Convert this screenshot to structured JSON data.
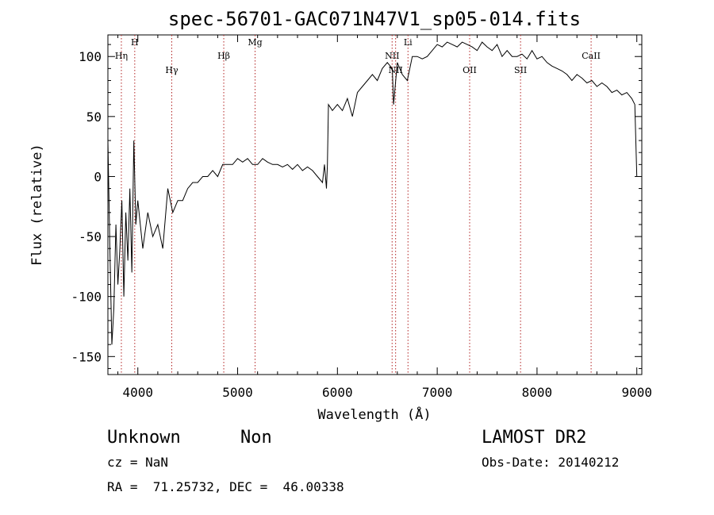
{
  "chart_data": {
    "type": "line",
    "title": "spec-56701-GAC071N47V1_sp05-014.fits",
    "xlabel": "Wavelength (Å)",
    "ylabel": "Flux (relative)",
    "xlim": [
      3700,
      9050
    ],
    "ylim": [
      -165,
      118
    ],
    "xticks": [
      4000,
      5000,
      6000,
      7000,
      8000,
      9000
    ],
    "yticks": [
      -150,
      -100,
      -50,
      0,
      50,
      100
    ],
    "line_color": "#000000",
    "marker_color": "#b22222",
    "grid": false,
    "series": [
      {
        "x": [
          3700,
          3720,
          3740,
          3760,
          3780,
          3800,
          3820,
          3840,
          3860,
          3880,
          3900,
          3920,
          3940,
          3960,
          3980,
          4000,
          4050,
          4100,
          4150,
          4200,
          4250,
          4300,
          4350,
          4400,
          4450,
          4500,
          4550,
          4600,
          4650,
          4700,
          4750,
          4800,
          4850,
          4900,
          4950,
          5000,
          5050,
          5100,
          5150,
          5200,
          5250,
          5300,
          5350,
          5400,
          5450,
          5500,
          5550,
          5600,
          5650,
          5700,
          5750,
          5800,
          5850,
          5870,
          5890,
          5900,
          5910,
          5950,
          6000,
          6050,
          6100,
          6150,
          6200,
          6250,
          6300,
          6350,
          6400,
          6450,
          6500,
          6550,
          6563,
          6600,
          6650,
          6700,
          6750,
          6800,
          6850,
          6900,
          6950,
          7000,
          7050,
          7100,
          7150,
          7200,
          7250,
          7300,
          7350,
          7400,
          7450,
          7500,
          7550,
          7600,
          7650,
          7700,
          7750,
          7800,
          7850,
          7900,
          7950,
          8000,
          8050,
          8100,
          8150,
          8200,
          8250,
          8300,
          8350,
          8400,
          8450,
          8500,
          8550,
          8600,
          8650,
          8700,
          8750,
          8800,
          8850,
          8900,
          8950,
          8980,
          9000
        ],
        "y": [
          30,
          -60,
          -140,
          -110,
          -40,
          -90,
          -60,
          -20,
          -100,
          -30,
          -70,
          -10,
          -80,
          30,
          -40,
          -20,
          -60,
          -30,
          -50,
          -40,
          -60,
          -10,
          -30,
          -20,
          -20,
          -10,
          -5,
          -5,
          0,
          0,
          5,
          0,
          10,
          10,
          10,
          15,
          12,
          15,
          10,
          10,
          15,
          12,
          10,
          10,
          8,
          10,
          6,
          10,
          5,
          8,
          5,
          0,
          -5,
          10,
          -10,
          10,
          60,
          55,
          60,
          55,
          65,
          50,
          70,
          75,
          80,
          85,
          80,
          90,
          95,
          90,
          60,
          95,
          85,
          80,
          100,
          100,
          98,
          100,
          105,
          110,
          108,
          112,
          110,
          108,
          112,
          110,
          108,
          105,
          112,
          108,
          105,
          110,
          100,
          105,
          100,
          100,
          102,
          98,
          105,
          98,
          100,
          95,
          92,
          90,
          88,
          85,
          80,
          85,
          82,
          78,
          80,
          75,
          78,
          75,
          70,
          72,
          68,
          70,
          65,
          60,
          0
        ]
      }
    ],
    "lines": [
      {
        "label": "Hη",
        "x": 3835
      },
      {
        "label": "H",
        "x": 3969
      },
      {
        "label": "Hγ",
        "x": 4340
      },
      {
        "label": "Hβ",
        "x": 4861
      },
      {
        "label": "Mg",
        "x": 5175
      },
      {
        "label": "NII",
        "x": 6548
      },
      {
        "label": "NII",
        "x": 6583
      },
      {
        "label": "Li",
        "x": 6707
      },
      {
        "label": "OII",
        "x": 7325
      },
      {
        "label": "SII",
        "x": 7835
      },
      {
        "label": "CaII",
        "x": 8542
      }
    ]
  },
  "info": {
    "object_class": "Unknown",
    "subclass": "Non",
    "survey": "LAMOST DR2",
    "cz": "cz = NaN",
    "obs_date": "Obs-Date: 20140212",
    "radec": "RA =  71.25732, DEC =  46.00338"
  }
}
